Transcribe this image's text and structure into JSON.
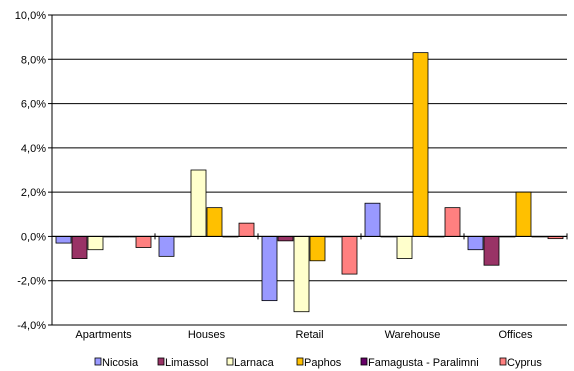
{
  "chart_data": {
    "type": "bar",
    "categories": [
      "Apartments",
      "Houses",
      "Retail",
      "Warehouse",
      "Offices"
    ],
    "series": [
      {
        "name": "Nicosia",
        "color": "#9999ff",
        "values": [
          -0.3,
          -0.9,
          -2.9,
          1.5,
          -0.6
        ]
      },
      {
        "name": "Limassol",
        "color": "#993366",
        "values": [
          -1.0,
          0.0,
          -0.2,
          0.0,
          -1.3
        ]
      },
      {
        "name": "Larnaca",
        "color": "#ffffcc",
        "values": [
          -0.6,
          3.0,
          -3.4,
          -1.0,
          0.0
        ]
      },
      {
        "name": "Paphos",
        "color": "#ffc000",
        "values": [
          0.0,
          1.3,
          -1.1,
          8.3,
          2.0
        ]
      },
      {
        "name": "Famagusta - Paralimni",
        "color": "#660066",
        "values": [
          0.0,
          0.0,
          0.0,
          0.0,
          0.0
        ]
      },
      {
        "name": "Cyprus",
        "color": "#ff8080",
        "values": [
          -0.5,
          0.6,
          -1.7,
          1.3,
          -0.1
        ]
      }
    ],
    "ylim": [
      -4.0,
      10.0
    ],
    "yticks": [
      -4.0,
      -2.0,
      0.0,
      2.0,
      4.0,
      6.0,
      8.0,
      10.0
    ],
    "ytick_labels": [
      "-4,0%",
      "-2,0%",
      "0,0%",
      "2,0%",
      "4,0%",
      "6,0%",
      "8,0%",
      "10,0%"
    ],
    "grid": true,
    "legend_position": "bottom",
    "title": "",
    "xlabel": "",
    "ylabel": ""
  }
}
